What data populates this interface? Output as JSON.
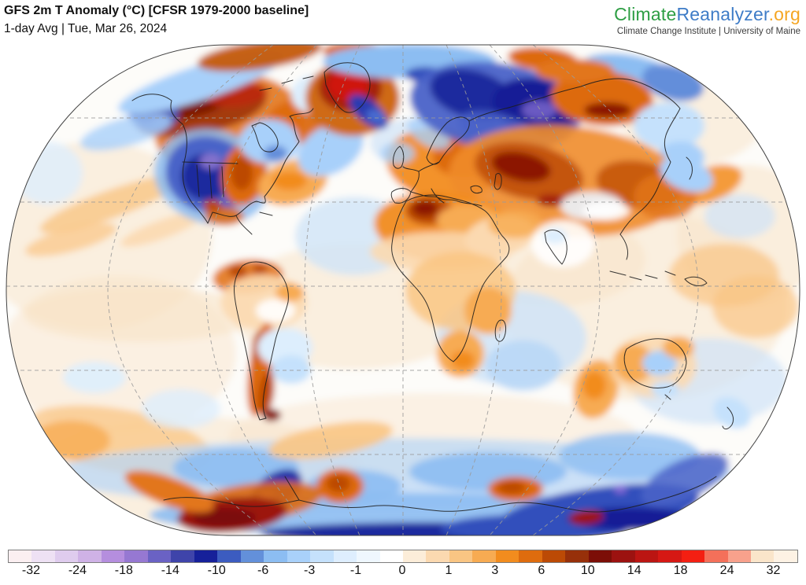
{
  "header": {
    "title": "GFS 2m T Anomaly (°C) [CFSR 1979-2000 baseline]",
    "subtitle": "1-day Avg | Tue, Mar 26, 2024"
  },
  "brand": {
    "climate": "Climate",
    "reanalyzer": "Reanalyzer",
    "org": ".org",
    "climate_color": "#2e9e44",
    "reanalyzer_color": "#3e7cc7",
    "org_color": "#f5a623",
    "tagline": "Climate Change Institute | University of Maine"
  },
  "colorbar": {
    "units": "°C",
    "tick_labels": [
      "-32",
      "-24",
      "-18",
      "-14",
      "-10",
      "-6",
      "-3",
      "-1",
      "0",
      "1",
      "3",
      "6",
      "10",
      "14",
      "18",
      "24",
      "32"
    ],
    "segment_colors": [
      "#fbeff1",
      "#eee1f4",
      "#dfccee",
      "#cfb2e6",
      "#b58ede",
      "#9678d2",
      "#6a62c4",
      "#3f44aa",
      "#16209a",
      "#3c5cc0",
      "#6390da",
      "#8cbdf2",
      "#a9d1fa",
      "#c5e1fc",
      "#deeefe",
      "#eff7fe",
      "#ffffff",
      "#fcedd9",
      "#fbd9b0",
      "#f9c583",
      "#f7ab52",
      "#f28c1e",
      "#de6c0e",
      "#bc4a05",
      "#97300a",
      "#7c0e07",
      "#9c1210",
      "#bb1512",
      "#d61814",
      "#f41f12",
      "#f4705a",
      "#f8a18c",
      "#fae5ca",
      "#fdf2e4"
    ]
  }
}
